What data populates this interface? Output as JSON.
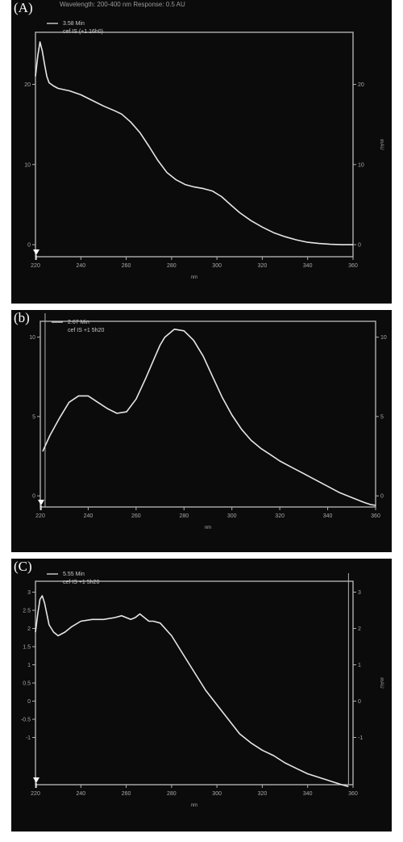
{
  "header_text": "Wavelength: 200-400 nm   Response: 0.5 AU",
  "chart_data": [
    {
      "type": "line",
      "panel_label": "(A)",
      "legend": [
        "3.58 Min",
        "cef IS (+1 16h0)"
      ],
      "xlabel": "nm",
      "y2label": "mAU",
      "xlim": [
        220,
        360
      ],
      "ylim": [
        -1.5,
        26.5
      ],
      "x_ticks": [
        220,
        240,
        260,
        280,
        300,
        320,
        340,
        360
      ],
      "y_ticks": [
        0,
        10,
        20
      ],
      "y2_ticks": [
        0,
        10,
        20
      ],
      "series": [
        {
          "x": [
            220,
            221,
            222,
            223,
            224,
            225,
            226,
            228,
            230,
            235,
            240,
            245,
            250,
            255,
            258,
            262,
            266,
            270,
            274,
            278,
            282,
            286,
            290,
            294,
            298,
            302,
            306,
            310,
            315,
            320,
            325,
            330,
            335,
            340,
            345,
            350,
            355,
            360
          ],
          "y": [
            21,
            23.5,
            25.3,
            24.2,
            22.5,
            21,
            20.2,
            19.8,
            19.5,
            19.2,
            18.7,
            18,
            17.3,
            16.7,
            16.3,
            15.3,
            14,
            12.3,
            10.5,
            9,
            8.1,
            7.5,
            7.2,
            7,
            6.7,
            6,
            5,
            4,
            3,
            2.2,
            1.5,
            1,
            0.6,
            0.3,
            0.15,
            0.05,
            0,
            0
          ]
        }
      ]
    },
    {
      "type": "line",
      "panel_label": "(b)",
      "legend": [
        "2.67 Min",
        "cef IS +1 5h20"
      ],
      "xlabel": "nm",
      "y2label": "",
      "xlim": [
        220,
        360
      ],
      "ylim": [
        -0.7,
        11
      ],
      "x_ticks": [
        220,
        240,
        260,
        280,
        300,
        320,
        340,
        360
      ],
      "y_ticks": [
        0,
        5,
        10
      ],
      "y2_ticks": [
        0,
        5,
        10
      ],
      "series": [
        {
          "x": [
            221,
            224,
            228,
            232,
            236,
            240,
            244,
            248,
            252,
            256,
            260,
            264,
            268,
            270,
            272,
            276,
            280,
            284,
            288,
            292,
            296,
            300,
            304,
            308,
            312,
            316,
            320,
            325,
            330,
            335,
            340,
            345,
            350,
            355,
            358,
            360
          ],
          "y": [
            2.8,
            3.8,
            4.9,
            5.9,
            6.3,
            6.3,
            5.9,
            5.5,
            5.2,
            5.3,
            6.1,
            7.4,
            8.8,
            9.5,
            10,
            10.5,
            10.4,
            9.8,
            8.8,
            7.5,
            6.2,
            5.1,
            4.2,
            3.5,
            3,
            2.6,
            2.2,
            1.8,
            1.4,
            1,
            0.6,
            0.2,
            -0.1,
            -0.4,
            -0.55,
            -0.6
          ]
        }
      ]
    },
    {
      "type": "line",
      "panel_label": "(C)",
      "legend": [
        "5.55 Min",
        "cef IS +1 5h20"
      ],
      "xlabel": "nm",
      "y2label": "mAU",
      "xlim": [
        220,
        360
      ],
      "ylim": [
        -2.3,
        3.3
      ],
      "x_ticks": [
        220,
        240,
        260,
        280,
        300,
        320,
        340,
        360
      ],
      "y_ticks": [
        -1,
        -0.5,
        0,
        0.5,
        1,
        1.5,
        2,
        2.5,
        3
      ],
      "y2_ticks": [
        -1,
        0,
        1,
        2,
        3
      ],
      "series": [
        {
          "x": [
            220,
            221,
            222,
            223,
            224,
            225,
            226,
            228,
            230,
            233,
            236,
            240,
            245,
            250,
            255,
            258,
            260,
            262,
            264,
            266,
            268,
            270,
            272,
            275,
            280,
            285,
            290,
            295,
            300,
            305,
            310,
            315,
            320,
            325,
            330,
            335,
            340,
            345,
            350,
            355,
            358
          ],
          "y": [
            1.9,
            2.4,
            2.8,
            2.9,
            2.7,
            2.4,
            2.1,
            1.9,
            1.8,
            1.9,
            2.05,
            2.2,
            2.25,
            2.25,
            2.3,
            2.35,
            2.3,
            2.25,
            2.3,
            2.4,
            2.3,
            2.2,
            2.2,
            2.15,
            1.8,
            1.3,
            0.8,
            0.3,
            -0.1,
            -0.5,
            -0.9,
            -1.15,
            -1.35,
            -1.5,
            -1.7,
            -1.85,
            -2.0,
            -2.1,
            -2.2,
            -2.3,
            -2.35
          ]
        }
      ]
    }
  ]
}
